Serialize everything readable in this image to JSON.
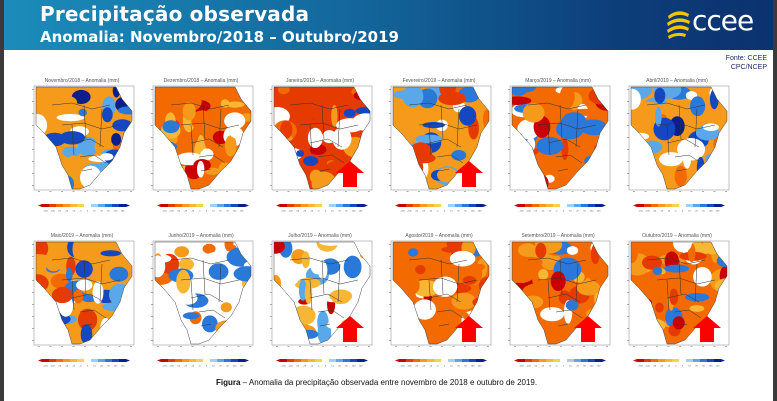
{
  "header": {
    "title": "Precipitação observada",
    "subtitle": "Anomalia: Novembro/2018 – Outubro/2019",
    "logo_text": "ccee",
    "colors": {
      "gradient_start": "#1b8cba",
      "gradient_end": "#0c326f",
      "logo_swoosh": "#f5c400"
    }
  },
  "source": {
    "line1": "Fonte: CCEE",
    "line2": "CPC/NCEP"
  },
  "colorbar": {
    "ticks": [
      "-150",
      "-100",
      "-50",
      "-25",
      "-10",
      "-5",
      "5",
      "10",
      "25",
      "50",
      "100",
      "150"
    ],
    "colors": [
      "#c80000",
      "#e53a00",
      "#f26a00",
      "#f59a1a",
      "#f7b733",
      "#f5d44a",
      "#ffffff",
      "#9fd0f5",
      "#5aa8ea",
      "#2a78d8",
      "#1447c0",
      "#0a1f8c"
    ]
  },
  "panels": [
    {
      "label": "Novembro/2018 – Anomalia (mm)",
      "arrow": false,
      "dominant": "mixed-wet"
    },
    {
      "label": "Dezembro/2018 – Anomalia (mm)",
      "arrow": false,
      "dominant": "dry"
    },
    {
      "label": "Janeiro/2019 – Anomalia (mm)",
      "arrow": true,
      "dominant": "very-dry"
    },
    {
      "label": "Fevereiro/2019 – Anomalia (mm)",
      "arrow": true,
      "dominant": "mixed"
    },
    {
      "label": "Março/2019 – Anomalia (mm)",
      "arrow": false,
      "dominant": "dry"
    },
    {
      "label": "Abril/2019 – Anomalia (mm)",
      "arrow": false,
      "dominant": "mixed-wet"
    },
    {
      "label": "Maio/2019 – Anomalia (mm)",
      "arrow": false,
      "dominant": "mixed"
    },
    {
      "label": "Junho/2019 – Anomalia (mm)",
      "arrow": false,
      "dominant": "neutral-dry"
    },
    {
      "label": "Julho/2019 – Anomalia (mm)",
      "arrow": true,
      "dominant": "neutral"
    },
    {
      "label": "Agosto/2019 – Anomalia (mm)",
      "arrow": true,
      "dominant": "dry"
    },
    {
      "label": "Setembro/2019 – Anomalia (mm)",
      "arrow": true,
      "dominant": "dry"
    },
    {
      "label": "Outubro/2019 – Anomalia (mm)",
      "arrow": true,
      "dominant": "dry"
    }
  ],
  "caption": {
    "bold": "Figura",
    "text": " – Anomalia da precipitação observada entre novembro de 2018 e outubro de 2019."
  }
}
